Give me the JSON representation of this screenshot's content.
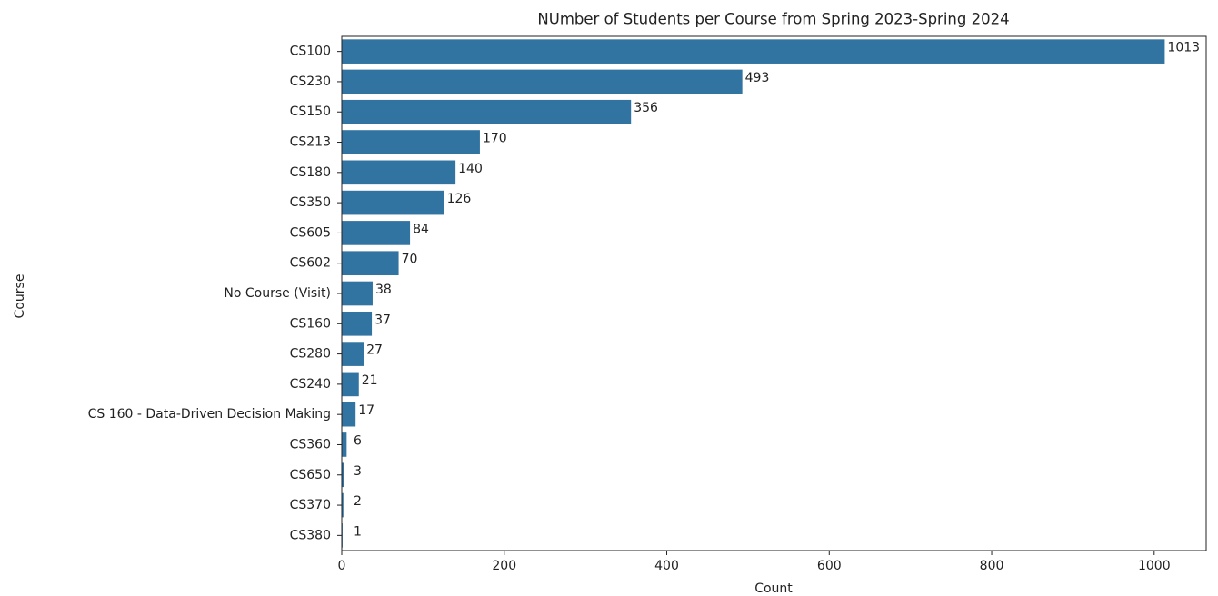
{
  "chart_data": {
    "type": "bar",
    "orientation": "horizontal",
    "title": "NUmber of Students per Course from Spring 2023-Spring 2024",
    "x_label": "Count",
    "y_label": "Course",
    "categories": [
      "CS100",
      "CS230",
      "CS150",
      "CS213",
      "CS180",
      "CS350",
      "CS605",
      "CS602",
      "No Course (Visit)",
      "CS160",
      "CS280",
      "CS240",
      "CS 160 - Data-Driven Decision Making",
      "CS360",
      "CS650",
      "CS370",
      "CS380"
    ],
    "values": [
      1013,
      493,
      356,
      170,
      140,
      126,
      84,
      70,
      38,
      37,
      27,
      21,
      17,
      6,
      3,
      2,
      1
    ],
    "color": "#3274a1",
    "xlim": [
      0,
      1064
    ],
    "xticks": [
      0,
      200,
      400,
      600,
      800,
      1000
    ],
    "grid": false
  }
}
